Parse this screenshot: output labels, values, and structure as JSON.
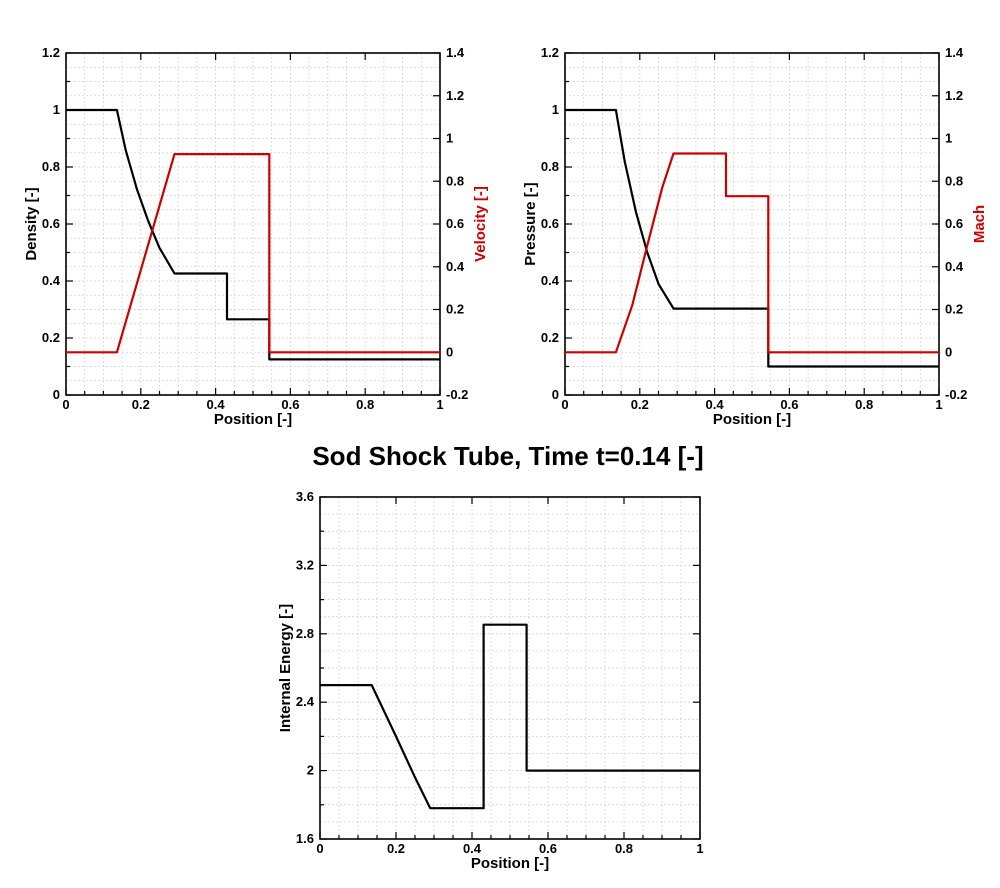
{
  "figure_title": "Sod Shock Tube, Time t=0.14 [-]",
  "colors": {
    "black": "#000000",
    "red": "#cc0000",
    "grid": "#d4d4d4"
  },
  "chart_data": [
    {
      "type": "line",
      "xlabel": "Position [-]",
      "ylabel": "Density [-]",
      "y2label": "Velocity [-]",
      "xlim": [
        0,
        1
      ],
      "ylim": [
        0,
        1.2
      ],
      "y2lim": [
        -0.2,
        1.4
      ],
      "xticks": [
        "0",
        "0.2",
        "0.4",
        "0.6",
        "0.8",
        "1"
      ],
      "yticks": [
        "0",
        "0.2",
        "0.4",
        "0.6",
        "0.8",
        "1",
        "1.2"
      ],
      "y2ticks": [
        "-0.2",
        "0",
        "0.2",
        "0.4",
        "0.6",
        "0.8",
        "1",
        "1.2",
        "1.4"
      ],
      "grid": true,
      "series": [
        {
          "axis": "left",
          "color": "#000000",
          "x": [
            0,
            0.136,
            0.16,
            0.19,
            0.22,
            0.25,
            0.29,
            0.4305,
            0.4305,
            0.5437,
            0.5437,
            1
          ],
          "y": [
            1,
            1,
            0.858,
            0.72,
            0.61,
            0.516,
            0.4264,
            0.4264,
            0.2656,
            0.2656,
            0.125,
            0.125
          ]
        },
        {
          "axis": "right",
          "color": "#cc0000",
          "x": [
            0,
            0.136,
            0.29,
            0.5437,
            0.5437,
            1
          ],
          "y": [
            0,
            0,
            0.927,
            0.927,
            0,
            0
          ]
        }
      ]
    },
    {
      "type": "line",
      "xlabel": "Position [-]",
      "ylabel": "Pressure [-]",
      "y2label": "Mach",
      "xlim": [
        0,
        1
      ],
      "ylim": [
        0,
        1.2
      ],
      "y2lim": [
        -0.2,
        1.4
      ],
      "xticks": [
        "0",
        "0.2",
        "0.4",
        "0.6",
        "0.8",
        "1"
      ],
      "yticks": [
        "0",
        "0.2",
        "0.4",
        "0.6",
        "0.8",
        "1",
        "1.2"
      ],
      "y2ticks": [
        "-0.2",
        "0",
        "0.2",
        "0.4",
        "0.6",
        "0.8",
        "1",
        "1.2",
        "1.4"
      ],
      "grid": true,
      "series": [
        {
          "axis": "left",
          "color": "#000000",
          "x": [
            0,
            0.136,
            0.16,
            0.19,
            0.22,
            0.25,
            0.29,
            0.5437,
            0.5437,
            1
          ],
          "y": [
            1,
            1,
            0.818,
            0.64,
            0.5,
            0.39,
            0.3031,
            0.3031,
            0.1,
            0.1
          ]
        },
        {
          "axis": "right",
          "color": "#cc0000",
          "x": [
            0,
            0.136,
            0.18,
            0.22,
            0.26,
            0.29,
            0.4305,
            0.4305,
            0.5437,
            0.5437,
            1
          ],
          "y": [
            0,
            0,
            0.22,
            0.5,
            0.77,
            0.93,
            0.93,
            0.73,
            0.73,
            0,
            0
          ]
        }
      ]
    },
    {
      "type": "line",
      "xlabel": "Position [-]",
      "ylabel": "Internal Energy [-]",
      "xlim": [
        0,
        1
      ],
      "ylim": [
        1.6,
        3.6
      ],
      "xticks": [
        "0",
        "0.2",
        "0.4",
        "0.6",
        "0.8",
        "1"
      ],
      "yticks": [
        "1.6",
        "2",
        "2.4",
        "2.8",
        "3.2",
        "3.6"
      ],
      "grid": true,
      "series": [
        {
          "axis": "left",
          "color": "#000000",
          "x": [
            0,
            0.136,
            0.2,
            0.25,
            0.29,
            0.4305,
            0.4305,
            0.5437,
            0.5437,
            1
          ],
          "y": [
            2.5,
            2.5,
            2.2,
            1.96,
            1.78,
            1.78,
            2.853,
            2.853,
            2.0,
            2.0
          ]
        }
      ]
    }
  ]
}
